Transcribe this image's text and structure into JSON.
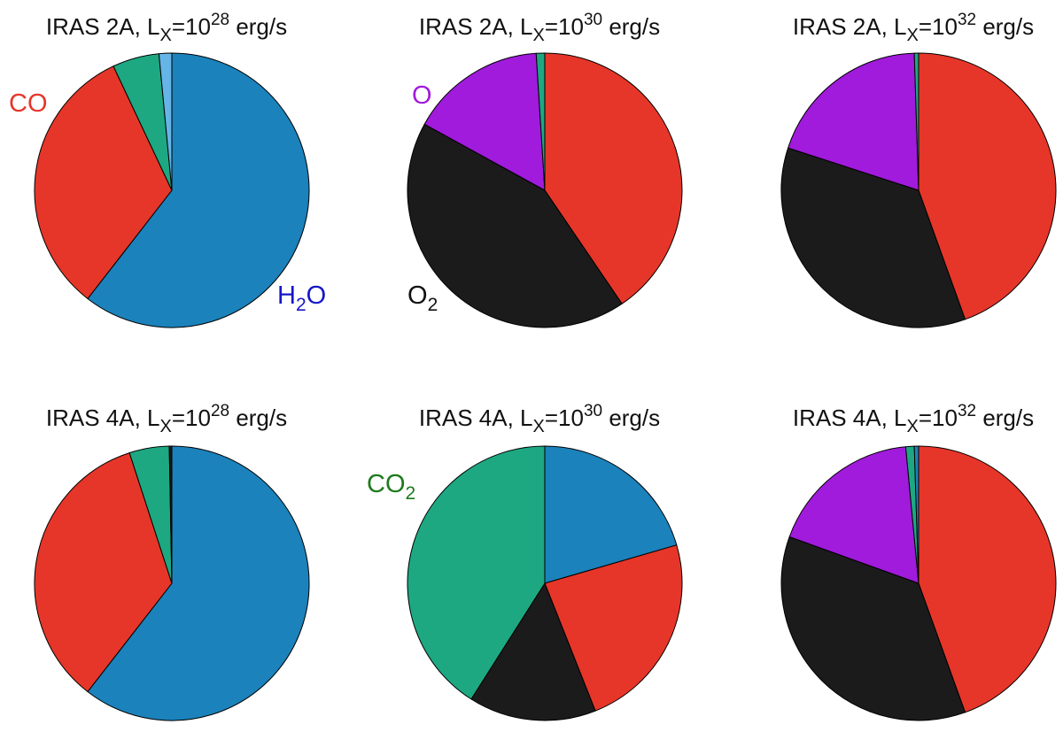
{
  "colors": {
    "H2O": "#1b82bb",
    "CO": "#e63629",
    "CO2": "#1da882",
    "O2": "#1b1b1b",
    "O": "#a01bdb",
    "other": "#65b5e8"
  },
  "chart_data": [
    {
      "type": "pie",
      "title": "IRAS 2A, L_X=10^28 erg/s",
      "title_parts": {
        "prefix": "IRAS 2A, L",
        "sub": "X",
        "mid": "=10",
        "sup": "28",
        "suffix": " erg/s"
      },
      "slices": [
        {
          "species": "H2O",
          "value": 60.5
        },
        {
          "species": "CO",
          "value": 32.5
        },
        {
          "species": "CO2",
          "value": 5.5
        },
        {
          "species": "other",
          "value": 1.5
        }
      ],
      "labels": [
        {
          "species": "CO",
          "text": "CO",
          "sub": "",
          "after": "",
          "color": "#e63629"
        },
        {
          "species": "H2O",
          "text": "H",
          "sub": "2",
          "after": "O",
          "color": "#1616c8"
        }
      ]
    },
    {
      "type": "pie",
      "title": "IRAS 2A, L_X=10^30 erg/s",
      "title_parts": {
        "prefix": "IRAS 2A, L",
        "sub": "X",
        "mid": "=10",
        "sup": "30",
        "suffix": " erg/s"
      },
      "slices": [
        {
          "species": "CO",
          "value": 40.5
        },
        {
          "species": "O2",
          "value": 42.5
        },
        {
          "species": "O",
          "value": 16.0
        },
        {
          "species": "CO2",
          "value": 1.0
        }
      ],
      "labels": [
        {
          "species": "O",
          "text": "O",
          "sub": "",
          "after": "",
          "color": "#a01bdb"
        },
        {
          "species": "O2",
          "text": "O",
          "sub": "2",
          "after": "",
          "color": "#111111"
        }
      ]
    },
    {
      "type": "pie",
      "title": "IRAS 2A, L_X=10^32 erg/s",
      "title_parts": {
        "prefix": "IRAS 2A, L",
        "sub": "X",
        "mid": "=10",
        "sup": "32",
        "suffix": " erg/s"
      },
      "slices": [
        {
          "species": "CO",
          "value": 44.5
        },
        {
          "species": "O2",
          "value": 35.5
        },
        {
          "species": "O",
          "value": 19.5
        },
        {
          "species": "CO2",
          "value": 0.5
        }
      ],
      "labels": []
    },
    {
      "type": "pie",
      "title": "IRAS 4A, L_X=10^28 erg/s",
      "title_parts": {
        "prefix": "IRAS 4A, L",
        "sub": "X",
        "mid": "=10",
        "sup": "28",
        "suffix": " erg/s"
      },
      "slices": [
        {
          "species": "H2O",
          "value": 60.5
        },
        {
          "species": "CO",
          "value": 34.5
        },
        {
          "species": "CO2",
          "value": 4.7
        },
        {
          "species": "O2",
          "value": 0.3
        }
      ],
      "labels": []
    },
    {
      "type": "pie",
      "title": "IRAS 4A, L_X=10^30 erg/s",
      "title_parts": {
        "prefix": "IRAS 4A, L",
        "sub": "X",
        "mid": "=10",
        "sup": "30",
        "suffix": " erg/s"
      },
      "slices": [
        {
          "species": "H2O",
          "value": 20.5
        },
        {
          "species": "CO",
          "value": 23.5
        },
        {
          "species": "O2",
          "value": 15.0
        },
        {
          "species": "CO2",
          "value": 41.0
        }
      ],
      "labels": [
        {
          "species": "CO2",
          "text": "CO",
          "sub": "2",
          "after": "",
          "color": "#1b7a1b"
        }
      ]
    },
    {
      "type": "pie",
      "title": "IRAS 4A, L_X=10^32 erg/s",
      "title_parts": {
        "prefix": "IRAS 4A, L",
        "sub": "X",
        "mid": "=10",
        "sup": "32",
        "suffix": " erg/s"
      },
      "slices": [
        {
          "species": "CO",
          "value": 44.5
        },
        {
          "species": "O2",
          "value": 36.0
        },
        {
          "species": "O",
          "value": 18.0
        },
        {
          "species": "CO2",
          "value": 1.0
        },
        {
          "species": "H2O",
          "value": 0.5
        }
      ],
      "labels": []
    }
  ]
}
